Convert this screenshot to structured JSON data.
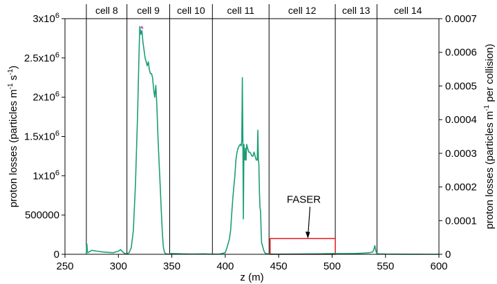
{
  "chart_data": {
    "type": "line",
    "title": "",
    "xlabel": "z (m)",
    "ylabel": "proton losses (particles m<sup>-1</sup> s<sup>-1</sup>)",
    "ylabel_left_parts": [
      "proton losses (particles m",
      "-1",
      " s",
      "-1",
      ")"
    ],
    "ylabel_right_parts": [
      "proton losses (particles m",
      "-1",
      " per collision)"
    ],
    "xlim": [
      250,
      600
    ],
    "ylim_left": [
      0,
      3000000
    ],
    "ylim_right": [
      0,
      0.0007
    ],
    "grid": false,
    "x_ticks": [
      "250",
      "300",
      "350",
      "400",
      "450",
      "500",
      "550",
      "600"
    ],
    "x_tick_values": [
      250,
      300,
      350,
      400,
      450,
      500,
      550,
      600
    ],
    "y_ticks_left": [
      {
        "value": 0,
        "base": "0",
        "exp": ""
      },
      {
        "value": 500000,
        "base": "500000",
        "exp": ""
      },
      {
        "value": 1000000,
        "base": "1x10",
        "exp": "6"
      },
      {
        "value": 1500000,
        "base": "1.5x10",
        "exp": "6"
      },
      {
        "value": 2000000,
        "base": "2x10",
        "exp": "6"
      },
      {
        "value": 2500000,
        "base": "2.5x10",
        "exp": "6"
      },
      {
        "value": 3000000,
        "base": "3x10",
        "exp": "6"
      }
    ],
    "y_ticks_right": [
      "0",
      "0.0001",
      "0.0002",
      "0.0003",
      "0.0004",
      "0.0005",
      "0.0006",
      "0.0007"
    ],
    "y_tick_values_right": [
      0,
      0.0001,
      0.0002,
      0.0003,
      0.0004,
      0.0005,
      0.0006,
      0.0007
    ],
    "cells": [
      {
        "label": "cell 8",
        "start": 270,
        "end": 308
      },
      {
        "label": "cell 9",
        "start": 308,
        "end": 348
      },
      {
        "label": "cell 10",
        "start": 348,
        "end": 388
      },
      {
        "label": "cell 11",
        "start": 388,
        "end": 441
      },
      {
        "label": "cell 12",
        "start": 441,
        "end": 503
      },
      {
        "label": "cell 13",
        "start": 503,
        "end": 542
      },
      {
        "label": "cell 14",
        "start": 542,
        "end": 600
      }
    ],
    "annotation": {
      "text": "FASER",
      "box_x": [
        442,
        503
      ],
      "box_y": [
        0,
        200000
      ]
    },
    "series": [
      {
        "color": "#1a9e77",
        "x": [
          270,
          270.5,
          271,
          271.5,
          272,
          275,
          280,
          285,
          290,
          295,
          300,
          302,
          304,
          306,
          308,
          310,
          312,
          314,
          316,
          318,
          319,
          320,
          321,
          322,
          323,
          324,
          325,
          326,
          327,
          328,
          329,
          330,
          331,
          332,
          333,
          334,
          335,
          336,
          337,
          338,
          339,
          340,
          341,
          342,
          343,
          344,
          345,
          346,
          347,
          348,
          350,
          360,
          370,
          380,
          388,
          395,
          400,
          402,
          404,
          405,
          406,
          407,
          408,
          409,
          410,
          411,
          412,
          413,
          414,
          415,
          415.5,
          416,
          416.5,
          417,
          417.5,
          418,
          418.5,
          419,
          419.5,
          420,
          421,
          422,
          423,
          424,
          425,
          426,
          427,
          428,
          429,
          430,
          430.5,
          431,
          431.5,
          432,
          432.5,
          433,
          433.5,
          434,
          435,
          436,
          437,
          438,
          440,
          445,
          450,
          460,
          470,
          480,
          490,
          500,
          510,
          520,
          530,
          535,
          538,
          539,
          540,
          541,
          542,
          544,
          550,
          560,
          570,
          580,
          590,
          600
        ],
        "y": [
          0,
          130000,
          30000,
          20000,
          25000,
          50000,
          40000,
          30000,
          25000,
          20000,
          40000,
          60000,
          30000,
          10000,
          5000,
          20000,
          80000,
          300000,
          900000,
          1800000,
          2400000,
          2900000,
          2800000,
          2850000,
          2700000,
          2600000,
          2500000,
          2450000,
          2400000,
          2450000,
          2350000,
          2300000,
          2300000,
          2250000,
          2100000,
          2000000,
          2150000,
          1900000,
          1500000,
          1200000,
          900000,
          600000,
          300000,
          100000,
          30000,
          10000,
          5000,
          3000,
          2000,
          5000,
          10000,
          5000,
          3000,
          5000,
          2000,
          3000,
          20000,
          100000,
          200000,
          300000,
          500000,
          700000,
          850000,
          1000000,
          1200000,
          1300000,
          1350000,
          1380000,
          1400000,
          1380000,
          1450000,
          2250000,
          1400000,
          450000,
          1400000,
          1250000,
          1200000,
          1350000,
          1200000,
          1400000,
          1350000,
          1300000,
          1300000,
          1280000,
          1250000,
          1250000,
          1300000,
          1250000,
          1200000,
          1200000,
          1580000,
          1200000,
          1150000,
          800000,
          600000,
          550000,
          350000,
          150000,
          100000,
          50000,
          20000,
          10000,
          5000,
          3000,
          2000,
          3000,
          4000,
          5000,
          6000,
          10000,
          8000,
          10000,
          15000,
          20000,
          30000,
          60000,
          110000,
          40000,
          10000,
          5000,
          3000,
          2000,
          1000,
          500,
          300,
          200
        ]
      },
      {
        "color": "#cc3fc4",
        "x": [
          321,
          322,
          323
        ],
        "y": [
          2880000,
          2900000,
          2870000
        ]
      }
    ]
  }
}
